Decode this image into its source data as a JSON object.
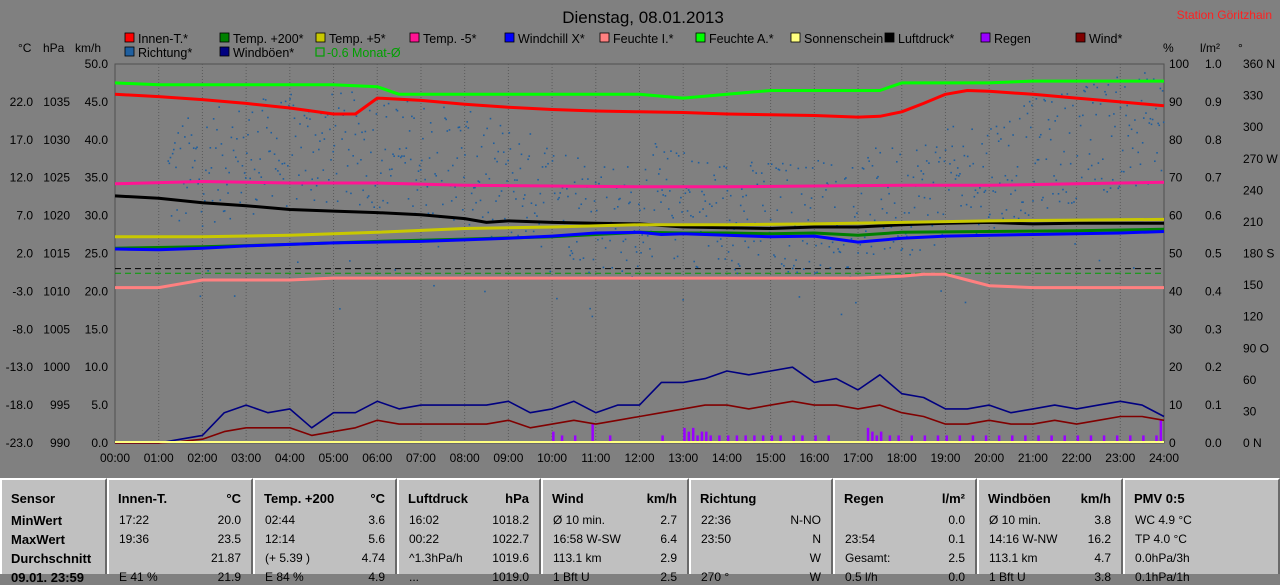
{
  "title": "Dienstag, 08.01.2013",
  "station": "Station Göritzhain",
  "axes": {
    "left1_unit": "°C",
    "left2_unit": "hPa",
    "left3_unit": "km/h",
    "right1_unit": "%",
    "right2_unit": "l/m²",
    "right3_unit": "°",
    "temp_ticks": [
      "22.0",
      "17.0",
      "12.0",
      "7.0",
      "2.0",
      "-3.0",
      "-8.0",
      "-13.0",
      "-18.0",
      "-23.0"
    ],
    "hpa_ticks": [
      "1035",
      "1030",
      "1025",
      "1020",
      "1015",
      "1010",
      "1005",
      "1000",
      "995",
      "990"
    ],
    "kmh_ticks": [
      "50.0",
      "45.0",
      "40.0",
      "35.0",
      "30.0",
      "25.0",
      "20.0",
      "15.0",
      "10.0",
      "5.0",
      "0.0"
    ],
    "pct_ticks": [
      "100",
      "90",
      "80",
      "70",
      "60",
      "50",
      "40",
      "30",
      "20",
      "10",
      "0"
    ],
    "rain_ticks": [
      "1.0",
      "0.9",
      "0.8",
      "0.7",
      "0.6",
      "0.5",
      "0.4",
      "0.3",
      "0.2",
      "0.1",
      "0.0"
    ],
    "deg_ticks": [
      "360 N",
      "330",
      "300",
      "270 W",
      "240",
      "210",
      "180 S",
      "150",
      "120",
      "90 O",
      "60",
      "30",
      "0 N"
    ],
    "time_ticks": [
      "00:00",
      "01:00",
      "02:00",
      "03:00",
      "04:00",
      "05:00",
      "06:00",
      "07:00",
      "08:00",
      "09:00",
      "10:00",
      "11:00",
      "12:00",
      "13:00",
      "14:00",
      "15:00",
      "16:00",
      "17:00",
      "18:00",
      "19:00",
      "20:00",
      "21:00",
      "22:00",
      "23:00",
      "24:00"
    ]
  },
  "legend": [
    {
      "label": "Innen-T.*",
      "color": "#ff0000"
    },
    {
      "label": "Temp. +200*",
      "color": "#008000"
    },
    {
      "label": "Temp. +5*",
      "color": "#c8c800"
    },
    {
      "label": "Temp. -5*",
      "color": "#ff1493"
    },
    {
      "label": "Windchill X*",
      "color": "#0000ff"
    },
    {
      "label": "Feuchte I.*",
      "color": "#ff8080"
    },
    {
      "label": "Feuchte A.*",
      "color": "#00ff00"
    },
    {
      "label": "Sonnenschein",
      "color": "#ffff80"
    },
    {
      "label": "Luftdruck*",
      "color": "#000000"
    },
    {
      "label": "Regen",
      "color": "#9900ff"
    },
    {
      "label": "Wind*",
      "color": "#800000"
    },
    {
      "label": "Richtung*",
      "color": "#1f5f9f"
    },
    {
      "label": "Windböen*",
      "color": "#000080"
    },
    {
      "label": "-0.6 Monat-Ø",
      "color": "#00a000"
    }
  ],
  "chart_data": {
    "type": "line",
    "x_unit": "hour",
    "x_range": [
      0,
      24
    ],
    "temp_range": [
      -23,
      27
    ],
    "wind_range": [
      0,
      50
    ],
    "pct_range": [
      0,
      100
    ],
    "rain_range": [
      0,
      1
    ],
    "dir_range": [
      0,
      360
    ],
    "series": [
      {
        "name": "Innen-T.*",
        "axis": "temp",
        "color": "#ff0000",
        "x": [
          0,
          1,
          2,
          3,
          4,
          5,
          5.5,
          6,
          7,
          8,
          9,
          10,
          11,
          12,
          13,
          14,
          15,
          16,
          17,
          17.5,
          18,
          18.5,
          19,
          19.5,
          20,
          21,
          22,
          23,
          24
        ],
        "y": [
          23.0,
          22.7,
          22.3,
          21.8,
          21.2,
          20.4,
          20.4,
          22.5,
          22.2,
          21.7,
          21.3,
          21.0,
          20.8,
          20.7,
          20.6,
          20.4,
          20.3,
          20.2,
          20.0,
          20.1,
          20.7,
          21.8,
          23.0,
          23.5,
          23.4,
          23.0,
          22.5,
          22.0,
          21.5
        ]
      },
      {
        "name": "Feuchte A.*",
        "axis": "pct",
        "color": "#00ff00",
        "x": [
          0,
          1,
          2,
          3,
          4,
          5,
          6,
          6.5,
          7,
          8,
          9,
          10,
          11,
          12,
          13,
          14,
          15,
          16,
          17,
          17.5,
          18,
          19,
          20,
          21,
          22,
          23,
          24
        ],
        "y": [
          95,
          94.5,
          94.5,
          94.5,
          94.5,
          94.5,
          94,
          92,
          92,
          92,
          92,
          92,
          92,
          92,
          91,
          92,
          93,
          93,
          93,
          93,
          95,
          95,
          95,
          95.5,
          95.5,
          95.5,
          95.5
        ]
      },
      {
        "name": "Temp. -5*",
        "axis": "temp",
        "color": "#ff1493",
        "x": [
          0,
          2,
          4,
          6,
          8,
          10,
          12,
          14,
          16,
          18,
          20,
          22,
          24
        ],
        "y": [
          11.2,
          11.5,
          11.3,
          11.3,
          11.0,
          10.9,
          10.8,
          10.8,
          10.9,
          11.0,
          11.0,
          11.2,
          11.4
        ]
      },
      {
        "name": "Luftdruck*",
        "axis": "hpa",
        "color": "#000000",
        "x": [
          0,
          1,
          2,
          3,
          4,
          5,
          6,
          7,
          8,
          8.5,
          9,
          10,
          11,
          12,
          13,
          14,
          15,
          16,
          17,
          18,
          19,
          20,
          21,
          22,
          23,
          24
        ],
        "y": [
          1022.6,
          1022.3,
          1021.7,
          1021.3,
          1020.8,
          1020.6,
          1020.4,
          1020.1,
          1019.6,
          1019.1,
          1019.3,
          1019.1,
          1019.0,
          1018.9,
          1018.5,
          1018.4,
          1018.3,
          1018.5,
          1018.5,
          1018.8,
          1019.0,
          1019.1,
          1018.9,
          1019.0,
          1019.0,
          1019.0
        ]
      },
      {
        "name": "Temp. +5*",
        "axis": "temp",
        "color": "#c8c800",
        "x": [
          0,
          2,
          4,
          6,
          8,
          10,
          12,
          14,
          16,
          18,
          20,
          22,
          24
        ],
        "y": [
          4.2,
          4.2,
          4.4,
          4.8,
          5.3,
          5.5,
          5.8,
          5.8,
          5.9,
          6.1,
          6.3,
          6.4,
          6.5
        ]
      },
      {
        "name": "Temp. +200*",
        "axis": "temp",
        "color": "#008000",
        "x": [
          0,
          2,
          4,
          6,
          8,
          10,
          11,
          12,
          13,
          14,
          15,
          16,
          17,
          18,
          20,
          22,
          24
        ],
        "y": [
          2.7,
          2.9,
          3.2,
          3.6,
          3.9,
          4.2,
          4.5,
          4.8,
          4.7,
          4.7,
          4.6,
          4.7,
          4.4,
          4.8,
          4.9,
          5.0,
          5.2
        ]
      },
      {
        "name": "Windchill X*",
        "axis": "temp",
        "color": "#0000ff",
        "x": [
          0,
          1,
          2,
          3,
          4,
          5,
          6,
          7,
          8,
          9,
          10,
          11,
          12,
          12.5,
          13,
          14,
          15,
          16,
          17,
          18,
          19,
          20,
          21,
          22,
          23,
          24
        ],
        "y": [
          2.6,
          2.5,
          2.7,
          3.0,
          3.2,
          3.4,
          3.5,
          3.6,
          3.8,
          4.0,
          4.3,
          4.7,
          4.8,
          4.5,
          4.6,
          4.4,
          4.2,
          4.3,
          3.5,
          4.0,
          4.3,
          4.4,
          4.5,
          4.6,
          4.7,
          4.9
        ]
      },
      {
        "name": "Feuchte I.*",
        "axis": "pct",
        "color": "#ff8080",
        "x": [
          0,
          1,
          1.5,
          2,
          3,
          4,
          5,
          6,
          7,
          8,
          9,
          10,
          11,
          12,
          13,
          14,
          15,
          16,
          17,
          18,
          18.5,
          19,
          19.5,
          20,
          21,
          22,
          23,
          24
        ],
        "y": [
          41,
          41,
          42,
          43,
          43,
          43,
          43.5,
          43.5,
          43.5,
          43.5,
          43.5,
          43.5,
          43.5,
          43.5,
          43.5,
          43.5,
          43.5,
          43.5,
          43.5,
          44,
          44.5,
          44.5,
          43,
          41.5,
          41,
          41,
          41,
          41
        ]
      },
      {
        "name": "Windböen*",
        "axis": "wind",
        "color": "#000080",
        "x": [
          0,
          1,
          1.5,
          2,
          2.5,
          3,
          3.5,
          4,
          4.5,
          5,
          5.5,
          6,
          6.5,
          7,
          7.5,
          8,
          8.5,
          9,
          9.5,
          10,
          10.5,
          11,
          11.5,
          12,
          12.5,
          13,
          13.5,
          14,
          14.5,
          15,
          15.5,
          16,
          16.5,
          17,
          17.5,
          18,
          18.5,
          19,
          19.5,
          20,
          20.5,
          21,
          21.5,
          22,
          22.5,
          23,
          23.5,
          24
        ],
        "y": [
          0,
          0,
          0.5,
          1,
          4,
          5,
          4,
          4.5,
          2,
          4,
          4,
          5.5,
          4.5,
          5,
          5,
          5,
          5,
          5.5,
          4,
          4.5,
          5.5,
          4,
          5,
          5,
          8,
          8,
          8.5,
          9.5,
          9,
          9.5,
          10,
          8,
          8.5,
          7,
          9,
          6.5,
          6,
          4.5,
          4.5,
          5,
          4,
          4.5,
          5,
          4.5,
          5,
          5.5,
          5,
          3.5
        ]
      },
      {
        "name": "Wind*",
        "axis": "wind",
        "color": "#800000",
        "x": [
          0,
          1,
          1.5,
          2,
          2.5,
          3,
          3.5,
          4,
          4.5,
          5,
          5.5,
          6,
          6.5,
          7,
          7.5,
          8,
          8.5,
          9,
          9.5,
          10,
          10.5,
          11,
          11.5,
          12,
          12.5,
          13,
          13.5,
          14,
          14.5,
          15,
          15.5,
          16,
          16.5,
          17,
          17.5,
          18,
          18.5,
          19,
          19.5,
          20,
          20.5,
          21,
          21.5,
          22,
          22.5,
          23,
          23.5,
          24
        ],
        "y": [
          0,
          0,
          0.2,
          0.5,
          1.5,
          2,
          2,
          2,
          1,
          1.5,
          2,
          3,
          2.5,
          2.5,
          2.5,
          2.5,
          2.5,
          3,
          2,
          2.5,
          3,
          2.5,
          3,
          3.5,
          4,
          4.5,
          5,
          5,
          4.5,
          5,
          5.5,
          5,
          5,
          4.5,
          5,
          4,
          3.5,
          2.5,
          2.5,
          3,
          2.5,
          2.5,
          3,
          2.5,
          3,
          3.5,
          3.5,
          3
        ]
      }
    ],
    "direction_scatter_deg_range": {
      "x_start": 1.2,
      "x_end": 24,
      "typical": [
        190,
        310
      ]
    },
    "rain_bars": {
      "times": [
        10.0,
        10.2,
        10.5,
        10.9,
        11.3,
        12.5,
        13.0,
        13.1,
        13.2,
        13.3,
        13.4,
        13.5,
        13.6,
        13.8,
        14.0,
        14.2,
        14.4,
        14.6,
        14.8,
        15.0,
        15.2,
        15.5,
        15.7,
        16.0,
        16.3,
        17.2,
        17.3,
        17.4,
        17.5,
        17.7,
        17.9,
        18.2,
        18.5,
        18.8,
        19.0,
        19.3,
        19.6,
        19.9,
        20.2,
        20.5,
        20.8,
        21.1,
        21.4,
        21.7,
        22.0,
        22.3,
        22.6,
        22.9,
        23.2,
        23.5,
        23.8,
        23.9
      ],
      "values": [
        0.03,
        0.02,
        0.02,
        0.05,
        0.02,
        0.02,
        0.04,
        0.03,
        0.04,
        0.02,
        0.03,
        0.03,
        0.02,
        0.02,
        0.02,
        0.02,
        0.02,
        0.02,
        0.02,
        0.02,
        0.02,
        0.02,
        0.02,
        0.02,
        0.02,
        0.04,
        0.03,
        0.02,
        0.03,
        0.02,
        0.02,
        0.02,
        0.02,
        0.02,
        0.02,
        0.02,
        0.02,
        0.02,
        0.02,
        0.02,
        0.02,
        0.02,
        0.02,
        0.02,
        0.02,
        0.02,
        0.02,
        0.02,
        0.02,
        0.02,
        0.02,
        0.06
      ]
    },
    "reference_lines": [
      {
        "axis": "temp",
        "value": -0.6,
        "color": "#00a000",
        "dash": true
      },
      {
        "axis": "temp",
        "value": 0.0,
        "color": "#000000",
        "dash": true
      }
    ]
  },
  "table": {
    "row_labels": [
      "Sensor",
      "MinWert",
      "MaxWert",
      "Durchschnitt",
      "09.01. 23:59"
    ],
    "columns": [
      {
        "title": "Innen-T.",
        "unit": "°C",
        "rows": [
          [
            "17:22",
            "20.0"
          ],
          [
            "19:36",
            "23.5"
          ],
          [
            "",
            "21.87"
          ],
          [
            "E 41 %",
            "21.9"
          ]
        ]
      },
      {
        "title": "Temp. +200",
        "unit": "°C",
        "rows": [
          [
            "02:44",
            "3.6"
          ],
          [
            "12:14",
            "5.6"
          ],
          [
            "(+ 5.39 )",
            "4.74"
          ],
          [
            "E 84 %",
            "4.9"
          ]
        ]
      },
      {
        "title": "Luftdruck",
        "unit": "hPa",
        "rows": [
          [
            "16:02",
            "1018.2"
          ],
          [
            "00:22",
            "1022.7"
          ],
          [
            "^1.3hPa/h",
            "1019.6"
          ],
          [
            "...",
            "1019.0"
          ]
        ]
      },
      {
        "title": "Wind",
        "unit": "km/h",
        "rows": [
          [
            "Ø 10 min.",
            "2.7"
          ],
          [
            "16:58  W-SW",
            "6.4"
          ],
          [
            "113.1 km",
            "2.9"
          ],
          [
            "1 Bft U",
            "2.5"
          ]
        ]
      },
      {
        "title": "Richtung",
        "unit": "",
        "rows": [
          [
            "22:36",
            "N-NO"
          ],
          [
            "23:50",
            "N"
          ],
          [
            "",
            "W"
          ],
          [
            "270 °",
            "W"
          ]
        ]
      },
      {
        "title": "Regen",
        "unit": "l/m²",
        "rows": [
          [
            "",
            "0.0"
          ],
          [
            "23:54",
            "0.1"
          ],
          [
            "Gesamt:",
            "2.5"
          ],
          [
            "0.5 l/h",
            "0.0"
          ]
        ]
      },
      {
        "title": "Windböen",
        "unit": "km/h",
        "rows": [
          [
            "Ø 10 min.",
            "3.8"
          ],
          [
            "14:16  W-NW",
            "16.2"
          ],
          [
            "113.1 km",
            "4.7"
          ],
          [
            "1 Bft U",
            "3.8"
          ]
        ]
      },
      {
        "title": "PMV 0:5",
        "unit": "",
        "rows": [
          [
            "WC 4.9 °C",
            ""
          ],
          [
            "TP 4.0 °C",
            ""
          ],
          [
            "0.0hPa/3h",
            ""
          ],
          [
            "0.1hPa/1h",
            ""
          ]
        ]
      }
    ]
  }
}
